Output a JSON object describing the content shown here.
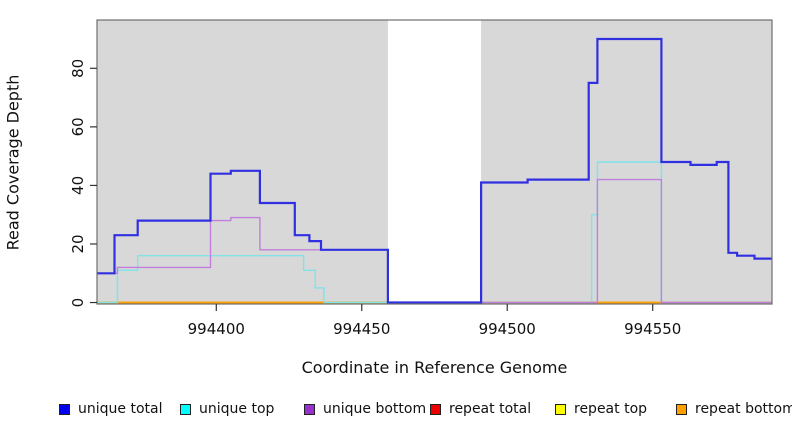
{
  "chart_data": {
    "type": "line",
    "step": true,
    "title": "",
    "xlabel": "Coordinate in Reference Genome",
    "ylabel": "Read Coverage Depth",
    "xlim": [
      994359,
      994591
    ],
    "ylim": [
      -0.5,
      96.5
    ],
    "xticks": [
      994400,
      994450,
      994500,
      994550
    ],
    "yticks": [
      0,
      20,
      40,
      60,
      80
    ],
    "grid": false,
    "legend_position": "bottom",
    "plot_bg_color": "#d8d8d8",
    "box_color": "#6e6e6e",
    "tick_color": "#333333",
    "masked_region": {
      "start": 994459,
      "end": 994491,
      "color": "#ffffff"
    },
    "series": [
      {
        "name": "repeat total",
        "color": "#ee0000",
        "legend_color": "#ee0000",
        "width": 1.4,
        "points": [
          [
            994359,
            0
          ]
        ]
      },
      {
        "name": "repeat top",
        "color": "#ffff00",
        "legend_color": "#ffff00",
        "width": 1.4,
        "points": [
          [
            994359,
            0
          ]
        ]
      },
      {
        "name": "repeat bottom",
        "color": "#ff9f00",
        "legend_color": "#ff9f00",
        "width": 1.8,
        "points": [
          [
            994359,
            0
          ]
        ]
      },
      {
        "name": "unique top",
        "color": "#7fe3e8",
        "legend_color": "#00ffff",
        "width": 1.4,
        "points": [
          [
            994359,
            0
          ],
          [
            994366,
            11
          ],
          [
            994373,
            16
          ],
          [
            994430,
            11
          ],
          [
            994434,
            5
          ],
          [
            994437,
            0
          ],
          [
            994529,
            30
          ],
          [
            994531,
            48
          ],
          [
            994553,
            0
          ]
        ]
      },
      {
        "name": "unique bottom",
        "color": "#c07fdd",
        "legend_color": "#9932cc",
        "width": 1.4,
        "points": [
          [
            994359,
            10
          ],
          [
            994366,
            12
          ],
          [
            994398,
            28
          ],
          [
            994405,
            29
          ],
          [
            994415,
            18
          ],
          [
            994459,
            0
          ],
          [
            994531,
            42
          ],
          [
            994553,
            0
          ]
        ]
      },
      {
        "name": "unique total",
        "color": "#3030e0",
        "legend_color": "#0000ee",
        "width": 2.2,
        "points": [
          [
            994359,
            10
          ],
          [
            994365,
            23
          ],
          [
            994373,
            28
          ],
          [
            994398,
            44
          ],
          [
            994405,
            45
          ],
          [
            994415,
            34
          ],
          [
            994427,
            23
          ],
          [
            994432,
            21
          ],
          [
            994436,
            18
          ],
          [
            994459,
            0
          ],
          [
            994491,
            41
          ],
          [
            994507,
            42
          ],
          [
            994528,
            75
          ],
          [
            994531,
            90
          ],
          [
            994553,
            48
          ],
          [
            994563,
            47
          ],
          [
            994572,
            48
          ],
          [
            994576,
            17
          ],
          [
            994579,
            16
          ],
          [
            994585,
            15
          ]
        ]
      }
    ],
    "legend": [
      {
        "label": "unique total",
        "color": "#0000ee"
      },
      {
        "label": "unique top",
        "color": "#00ffff"
      },
      {
        "label": "unique bottom",
        "color": "#9932cc"
      },
      {
        "label": "repeat total",
        "color": "#ee0000"
      },
      {
        "label": "repeat top",
        "color": "#ffff00"
      },
      {
        "label": "repeat bottom",
        "color": "#ff9f00"
      }
    ]
  }
}
